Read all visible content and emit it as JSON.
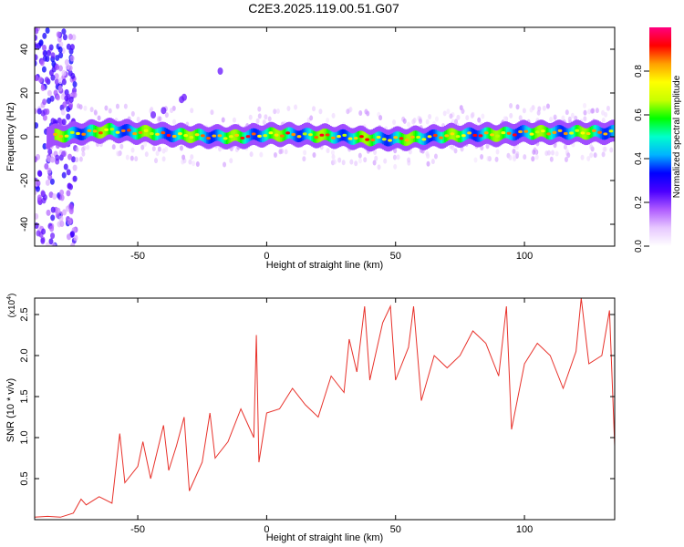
{
  "title": "C2E3.2025.119.00.51.G07",
  "colors": {
    "snr_line": "#e8312a",
    "spectrogram_colormap": [
      "#ffffff",
      "#e7c8ff",
      "#b05cff",
      "#4b00ff",
      "#0000ff",
      "#00b3ff",
      "#00ffcc",
      "#00ff00",
      "#c8ff00",
      "#ffff00",
      "#ffa000",
      "#ff0000",
      "#ff0080"
    ],
    "frame": "#000000"
  },
  "chart_data": [
    {
      "type": "heatmap",
      "title": "C2E3.2025.119.00.51.G07",
      "xlabel": "Height of straight line (km)",
      "ylabel": "Frequency (Hz)",
      "xlim": [
        -90,
        135
      ],
      "ylim": [
        -50,
        50
      ],
      "x_ticks": [
        "-50",
        "0",
        "50",
        "100"
      ],
      "x_tick_values": [
        -50,
        0,
        50,
        100
      ],
      "y_ticks": [
        "-40",
        "-20",
        "0",
        "20",
        "40"
      ],
      "y_tick_values": [
        -40,
        -20,
        0,
        20,
        40
      ],
      "colorbar": {
        "label": "Normalized spectral amplitude",
        "range": [
          0,
          1
        ],
        "ticks": [
          "0.0",
          "0.2",
          "0.4",
          "0.6",
          "0.8"
        ],
        "tick_values": [
          0.0,
          0.2,
          0.4,
          0.6,
          0.8
        ]
      },
      "ridge_center_hz": [
        [
          -85,
          0
        ],
        [
          -80,
          0.5
        ],
        [
          -70,
          2
        ],
        [
          -60,
          3
        ],
        [
          -50,
          2
        ],
        [
          -45,
          2
        ],
        [
          -40,
          1
        ],
        [
          -30,
          0.5
        ],
        [
          -20,
          0
        ],
        [
          -10,
          0
        ],
        [
          0,
          1
        ],
        [
          10,
          1
        ],
        [
          20,
          0.5
        ],
        [
          30,
          0
        ],
        [
          40,
          -1
        ],
        [
          50,
          -1
        ],
        [
          60,
          -0.5
        ],
        [
          70,
          0.5
        ],
        [
          80,
          1
        ],
        [
          90,
          1
        ],
        [
          100,
          2
        ],
        [
          110,
          2
        ],
        [
          120,
          2
        ],
        [
          130,
          2
        ]
      ]
    },
    {
      "type": "line",
      "xlabel": "Height of straight line (km)",
      "ylabel": "SNR (10 * v/v)",
      "y_multiplier_label": "(x10",
      "y_multiplier_exponent": "4",
      "xlim": [
        -90,
        135
      ],
      "ylim": [
        0,
        27000
      ],
      "x_ticks": [
        "-50",
        "0",
        "50",
        "100"
      ],
      "x_tick_values": [
        -50,
        0,
        50,
        100
      ],
      "y_ticks": [
        "0.5",
        "1.0",
        "1.5",
        "2.0",
        "2.5"
      ],
      "y_tick_values": [
        5000,
        10000,
        15000,
        20000,
        25000
      ],
      "series": [
        {
          "x": [
            -90,
            -85,
            -80,
            -75,
            -72,
            -70,
            -65,
            -60,
            -57,
            -55,
            -50,
            -48,
            -45,
            -40,
            -38,
            -35,
            -32,
            -30,
            -25,
            -22,
            -20,
            -15,
            -10,
            -5,
            -4,
            -3,
            0,
            5,
            10,
            15,
            20,
            25,
            30,
            32,
            35,
            38,
            40,
            45,
            48,
            50,
            55,
            57,
            60,
            65,
            70,
            75,
            80,
            85,
            90,
            93,
            95,
            100,
            105,
            110,
            115,
            120,
            122,
            125,
            130,
            133,
            135
          ],
          "y": [
            300,
            400,
            300,
            800,
            2500,
            1800,
            2800,
            2000,
            10500,
            4500,
            6500,
            9500,
            5000,
            11500,
            6000,
            9000,
            12500,
            3500,
            7000,
            13000,
            7500,
            9500,
            13500,
            10000,
            22500,
            7000,
            13000,
            13500,
            16000,
            14000,
            12500,
            17500,
            15500,
            22000,
            18000,
            26000,
            17000,
            24000,
            26000,
            17000,
            21000,
            26000,
            14500,
            20000,
            18500,
            20000,
            23000,
            21500,
            17500,
            26000,
            11000,
            19000,
            21500,
            20000,
            16000,
            20500,
            27000,
            19000,
            20000,
            25500,
            9000
          ]
        }
      ]
    }
  ]
}
